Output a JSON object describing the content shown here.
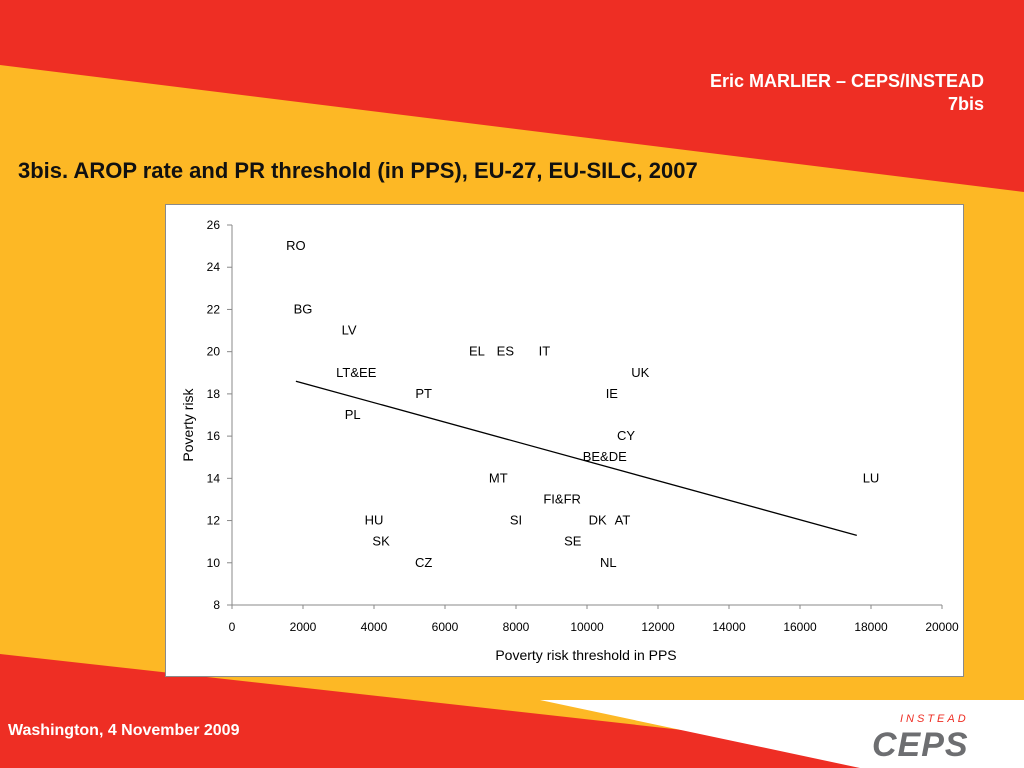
{
  "header": {
    "author": "Eric MARLIER – CEPS/INSTEAD",
    "slide_number": "7bis"
  },
  "slide_title": "3bis. AROP rate and PR threshold (in PPS), EU-27, EU-SILC, 2007",
  "footer": {
    "text": "Washington, 4 November 2009"
  },
  "logo": {
    "top_text": "INSTEAD",
    "main_text": "CEPS"
  },
  "colors": {
    "red": "#EE2E24",
    "yellow": "#FDB825",
    "white": "#FFFFFF"
  },
  "chart_data": {
    "type": "scatter",
    "xlabel": "Poverty risk threshold in PPS",
    "ylabel": "Poverty risk",
    "xlim": [
      0,
      20000
    ],
    "ylim": [
      8,
      26
    ],
    "x_ticks": [
      0,
      2000,
      4000,
      6000,
      8000,
      10000,
      12000,
      14000,
      16000,
      18000,
      20000
    ],
    "y_ticks": [
      8,
      10,
      12,
      14,
      16,
      18,
      20,
      22,
      24,
      26
    ],
    "grid": false,
    "points": [
      {
        "label": "RO",
        "x": 1800,
        "y": 25
      },
      {
        "label": "BG",
        "x": 2000,
        "y": 22
      },
      {
        "label": "LV",
        "x": 3300,
        "y": 21
      },
      {
        "label": "EL",
        "x": 6900,
        "y": 20
      },
      {
        "label": "ES",
        "x": 7700,
        "y": 20
      },
      {
        "label": "IT",
        "x": 8800,
        "y": 20
      },
      {
        "label": "LT&EE",
        "x": 3500,
        "y": 19
      },
      {
        "label": "UK",
        "x": 11500,
        "y": 19
      },
      {
        "label": "PT",
        "x": 5400,
        "y": 18
      },
      {
        "label": "IE",
        "x": 10700,
        "y": 18
      },
      {
        "label": "PL",
        "x": 3400,
        "y": 17
      },
      {
        "label": "CY",
        "x": 11100,
        "y": 16
      },
      {
        "label": "BE&DE",
        "x": 10500,
        "y": 15
      },
      {
        "label": "MT",
        "x": 7500,
        "y": 14
      },
      {
        "label": "LU",
        "x": 18000,
        "y": 14
      },
      {
        "label": "FI&FR",
        "x": 9300,
        "y": 13
      },
      {
        "label": "HU",
        "x": 4000,
        "y": 12
      },
      {
        "label": "SI",
        "x": 8000,
        "y": 12
      },
      {
        "label": "DK",
        "x": 10300,
        "y": 12
      },
      {
        "label": "AT",
        "x": 11000,
        "y": 12
      },
      {
        "label": "SK",
        "x": 4200,
        "y": 11
      },
      {
        "label": "SE",
        "x": 9600,
        "y": 11
      },
      {
        "label": "CZ",
        "x": 5400,
        "y": 10
      },
      {
        "label": "NL",
        "x": 10600,
        "y": 10
      }
    ],
    "trend_line": {
      "x": [
        1800,
        17600
      ],
      "y": [
        18.6,
        11.3
      ]
    }
  }
}
